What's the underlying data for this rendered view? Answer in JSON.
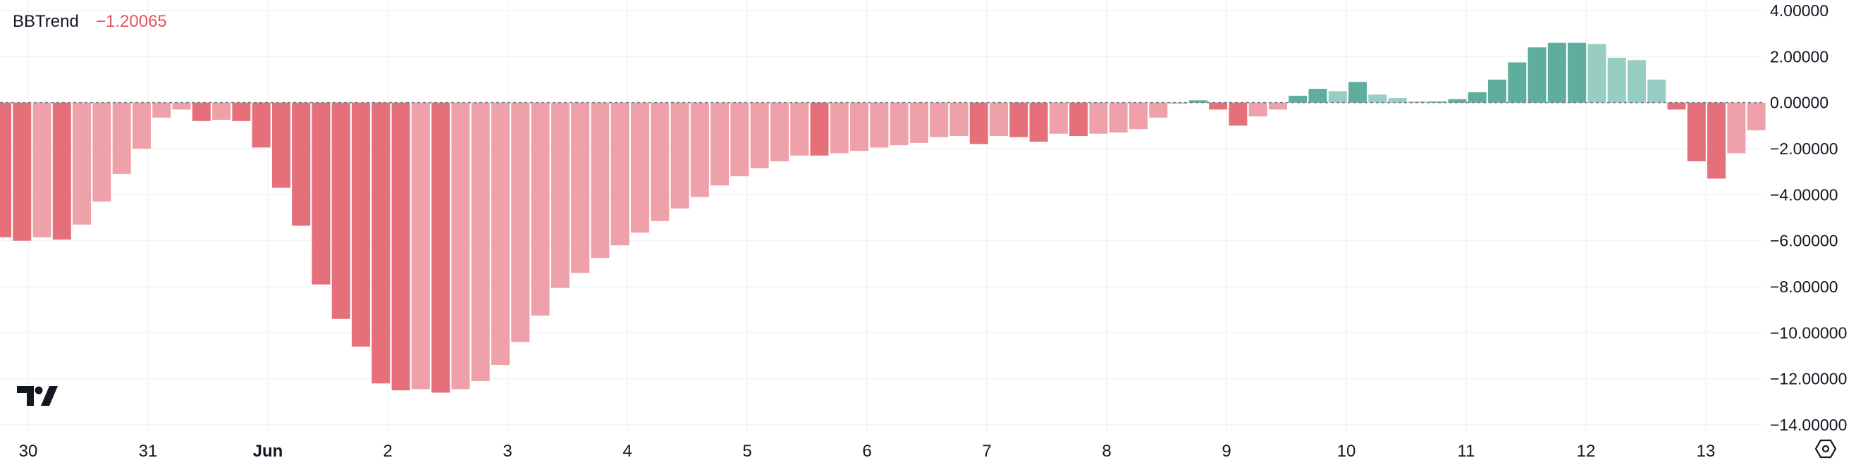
{
  "indicator": {
    "name": "BBTrend",
    "value": "−1.20065",
    "value_color": "#e5565f"
  },
  "colors": {
    "neg_strong": "#e5707a",
    "neg_light": "#eea1a8",
    "pos_strong": "#5fad9d",
    "pos_light": "#97cdc2",
    "grid": "#eef0f3",
    "text": "#131722",
    "zero_line": "#787b86"
  },
  "icons": {
    "logo": "tradingview-logo-icon",
    "settings": "settings-hexagon-icon"
  },
  "chart_data": {
    "type": "bar",
    "title": "BBTrend",
    "ylim": [
      -14,
      4
    ],
    "y_ticks": [
      "4.00000",
      "2.00000",
      "0.00000",
      "−2.00000",
      "−4.00000",
      "−6.00000",
      "−8.00000",
      "−10.00000",
      "−12.00000",
      "−14.00000"
    ],
    "x_ticks": [
      "30",
      "31",
      "Jun",
      "2",
      "3",
      "4",
      "5",
      "6",
      "7",
      "8",
      "9",
      "10",
      "11",
      "12",
      "13"
    ],
    "grid": true,
    "series": [
      {
        "values": [
          -5.85,
          -6.0,
          -5.85,
          -5.95,
          -5.3,
          -4.3,
          -3.1,
          -2.0,
          -0.65,
          -0.3,
          -0.8,
          -0.75,
          -0.8,
          -1.95,
          -3.7,
          -5.35,
          -7.9,
          -9.4,
          -10.6,
          -12.2,
          -12.5,
          -12.45,
          -12.6,
          -12.45,
          -12.1,
          -11.4,
          -10.4,
          -9.25,
          -8.05,
          -7.4,
          -6.75,
          -6.2,
          -5.65,
          -5.15,
          -4.6,
          -4.1,
          -3.6,
          -3.2,
          -2.85,
          -2.55,
          -2.3,
          -2.3,
          -2.2,
          -2.1,
          -1.95,
          -1.85,
          -1.75,
          -1.5,
          -1.45,
          -1.8,
          -1.45,
          -1.5,
          -1.7,
          -1.35,
          -1.45,
          -1.35,
          -1.3,
          -1.15,
          -0.65,
          -0.05,
          0.1,
          -0.3,
          -1.0,
          -0.6,
          -0.3,
          0.3,
          0.6,
          0.5,
          0.9,
          0.35,
          0.2,
          0.05,
          0.05,
          0.15,
          0.45,
          1.0,
          1.75,
          2.4,
          2.6,
          2.6,
          2.55,
          1.95,
          1.85,
          1.0,
          -0.3,
          -2.55,
          -3.3,
          -2.2,
          -1.2
        ]
      }
    ]
  }
}
